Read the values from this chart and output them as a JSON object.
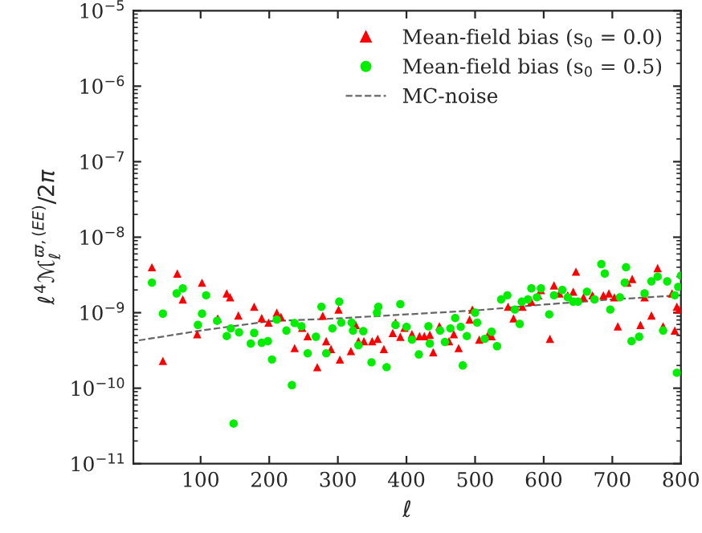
{
  "chart_data": {
    "type": "scatter",
    "xlabel": "ℓ",
    "ylabel": "ℓ$^{4}$ℳ$^{ϖ,(EE)}$$_{ℓ}$/2π",
    "log": "y",
    "xlim": [
      2,
      800
    ],
    "xticks": [
      100,
      200,
      300,
      400,
      500,
      600,
      700,
      800
    ],
    "ylim": [
      1e-11,
      1e-05
    ],
    "yticks": [
      {
        "value": 1e-11,
        "label": "10$^{−11}$"
      },
      {
        "value": 1e-10,
        "label": "10$^{−10}$"
      },
      {
        "value": 1e-09,
        "label": "10$^{−9}$"
      },
      {
        "value": 1e-08,
        "label": "10$^{−8}$"
      },
      {
        "value": 1e-07,
        "label": "10$^{−7}$"
      },
      {
        "value": 1e-06,
        "label": "10$^{−6}$"
      },
      {
        "value": 1e-05,
        "label": "10$^{−5}$"
      }
    ],
    "grid": false,
    "legend": "top right",
    "series": [
      {
        "name": "Mean-field bias (s$_{0}$ = 0.0)",
        "marker": "triangle",
        "color": "#ff0000",
        "x": [
          29,
          45,
          66,
          74,
          95,
          102,
          125,
          138,
          143,
          155,
          178,
          189,
          199,
          211,
          217,
          237,
          248,
          256,
          270,
          278,
          283,
          290,
          301,
          303,
          319,
          326,
          330,
          338,
          350,
          358,
          367,
          380,
          384,
          391,
          397,
          408,
          419,
          426,
          434,
          439,
          448,
          462,
          469,
          476,
          492,
          496,
          506,
          519,
          524,
          548,
          556,
          569,
          582,
          592,
          596,
          609,
          615,
          623,
          635,
          643,
          647,
          658,
          671,
          687,
          695,
          703,
          708,
          722,
          729,
          741,
          747,
          757,
          766,
          774,
          787,
          791,
          794,
          797
        ],
        "values": [
          4e-09,
          2.3e-10,
          3.3e-09,
          1.5e-09,
          5.2e-10,
          2.5e-09,
          8.4e-10,
          1.8e-09,
          1.6e-09,
          9.2e-10,
          1.2e-09,
          8.5e-10,
          7.4e-10,
          1e-09,
          8.8e-10,
          3.4e-10,
          6.3e-10,
          4.9e-10,
          1.9e-10,
          9.1e-10,
          4.2e-10,
          3.3e-10,
          1.1e-09,
          2.4e-10,
          3.1e-10,
          6.9e-10,
          4.2e-10,
          4.2e-10,
          4.2e-10,
          4.5e-10,
          3.3e-10,
          5.4e-10,
          7.4e-10,
          4.8e-10,
          6.3e-10,
          5.2e-10,
          4.9e-10,
          4.9e-10,
          5.1e-10,
          3e-10,
          6.6e-10,
          4.2e-10,
          5.2e-10,
          3.4e-10,
          8.1e-10,
          1.1e-09,
          4.4e-10,
          5.1e-10,
          4.9e-10,
          1.2e-09,
          8.4e-10,
          1.2e-09,
          1.4e-09,
          1.7e-09,
          2e-09,
          4.5e-10,
          2.3e-09,
          1.8e-09,
          1.7e-09,
          1.9e-09,
          3.5e-09,
          1.6e-09,
          1.7e-09,
          1.7e-09,
          1.8e-09,
          1.6e-09,
          6.6e-10,
          2.5e-09,
          2.8e-09,
          6.9e-10,
          1.6e-09,
          9.2e-10,
          3.9e-09,
          6.6e-10,
          1.8e-09,
          5.8e-10,
          1.2e-09,
          1.1e-09
        ]
      },
      {
        "name": "Mean-field bias (s$_{0}$ = 0.5)",
        "marker": "circle",
        "color": "#00ee00",
        "x": [
          29,
          45,
          65,
          74,
          96,
          102,
          108,
          124,
          138,
          144,
          148,
          156,
          173,
          178,
          189,
          198,
          204,
          211,
          225,
          233,
          237,
          247,
          256,
          268,
          276,
          283,
          292,
          302,
          305,
          320,
          322,
          330,
          337,
          349,
          357,
          359,
          371,
          384,
          391,
          400,
          408,
          418,
          432,
          434,
          449,
          456,
          464,
          471,
          479,
          482,
          488,
          500,
          503,
          514,
          524,
          532,
          538,
          547,
          558,
          565,
          568,
          577,
          582,
          590,
          596,
          608,
          615,
          627,
          635,
          643,
          650,
          663,
          674,
          684,
          689,
          697,
          711,
          718,
          720,
          728,
          739,
          747,
          757,
          766,
          774,
          780,
          791,
          794,
          796,
          800
        ],
        "values": [
          2.5e-09,
          9.7e-10,
          1.8e-09,
          2.1e-09,
          6.9e-10,
          9.7e-10,
          1.7e-09,
          7.8e-10,
          4.9e-10,
          6.2e-10,
          3.4e-11,
          5.5e-10,
          3.9e-10,
          5.4e-10,
          4e-10,
          4.2e-10,
          2.4e-10,
          8.1e-10,
          5.8e-10,
          1.1e-10,
          7.3e-10,
          6.6e-10,
          2.9e-10,
          4.8e-10,
          1.2e-09,
          2.9e-10,
          6.2e-10,
          1.4e-09,
          7.4e-10,
          7.4e-10,
          5.8e-10,
          3.7e-10,
          5.7e-10,
          2.2e-10,
          1e-09,
          1.2e-09,
          1.9e-10,
          6.9e-10,
          1.3e-09,
          6.5e-10,
          4.4e-10,
          2.8e-10,
          6.6e-10,
          3.9e-10,
          5.8e-10,
          4.1e-10,
          6.2e-10,
          8.5e-10,
          6.5e-10,
          2e-10,
          4.9e-10,
          1e-09,
          7.4e-10,
          4.5e-10,
          5.6e-10,
          3.6e-10,
          1.5e-09,
          1.7e-09,
          1.1e-09,
          7.1e-10,
          1.4e-09,
          1.5e-09,
          2.1e-09,
          1.6e-09,
          2.1e-09,
          9.5e-10,
          1.7e-09,
          2e-09,
          1.6e-09,
          1.4e-09,
          1.4e-09,
          1.9e-09,
          1.5e-09,
          4.4e-09,
          3.3e-09,
          1.1e-09,
          1.6e-09,
          2.5e-09,
          4e-09,
          4.2e-10,
          4.8e-10,
          1.8e-09,
          2.6e-09,
          3e-09,
          5.8e-10,
          2.6e-09,
          1.7e-09,
          1.6e-10,
          2.2e-09,
          3.1e-09
        ]
      },
      {
        "name": "MC-noise",
        "type": "line",
        "line_style": "dashed",
        "marker": "none",
        "color": "#666666",
        "x": [
          10,
          100,
          200,
          300,
          400,
          500,
          600,
          700,
          800
        ],
        "values": [
          4.3e-10,
          5.8e-10,
          7.7e-10,
          8.4e-10,
          9.5e-10,
          1.07e-09,
          1.28e-09,
          1.5e-09,
          1.7e-09
        ]
      }
    ]
  }
}
